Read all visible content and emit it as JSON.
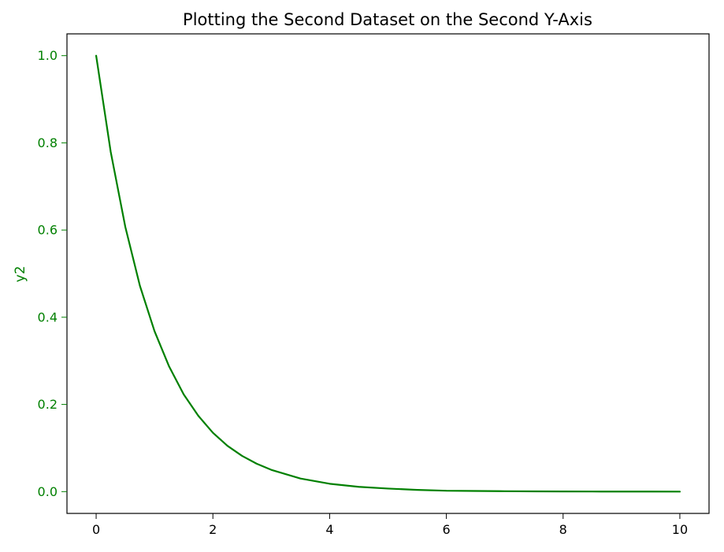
{
  "chart_data": {
    "type": "line",
    "title": "Plotting the Second Dataset on the Second Y-Axis",
    "xlabel": "",
    "ylabel": "y2",
    "xlim": [
      -0.5,
      10.5
    ],
    "ylim": [
      -0.05,
      1.05
    ],
    "x_ticks": [
      0,
      2,
      4,
      6,
      8,
      10
    ],
    "y_ticks": [
      0.0,
      0.2,
      0.4,
      0.6,
      0.8,
      1.0
    ],
    "x_tick_labels": [
      "0",
      "2",
      "4",
      "6",
      "8",
      "10"
    ],
    "y_tick_labels": [
      "0.0",
      "0.2",
      "0.4",
      "0.6",
      "0.8",
      "1.0"
    ],
    "grid": false,
    "colors": {
      "series": "#008000",
      "y_axis": "#008000",
      "x_axis": "#000000",
      "frame": "#000000"
    },
    "series": [
      {
        "x": [
          0,
          0.25,
          0.5,
          0.75,
          1,
          1.25,
          1.5,
          1.75,
          2,
          2.25,
          2.5,
          2.75,
          3,
          3.5,
          4,
          4.5,
          5,
          5.5,
          6,
          6.5,
          7,
          7.5,
          8,
          8.5,
          9,
          9.5,
          10
        ],
        "values": [
          1.0,
          0.779,
          0.607,
          0.472,
          0.368,
          0.287,
          0.223,
          0.174,
          0.135,
          0.105,
          0.082,
          0.064,
          0.05,
          0.03,
          0.018,
          0.011,
          0.007,
          0.004,
          0.002,
          0.0015,
          0.0009,
          0.0006,
          0.0003,
          0.0002,
          0.0001,
          0.0001,
          0.0
        ]
      }
    ]
  }
}
